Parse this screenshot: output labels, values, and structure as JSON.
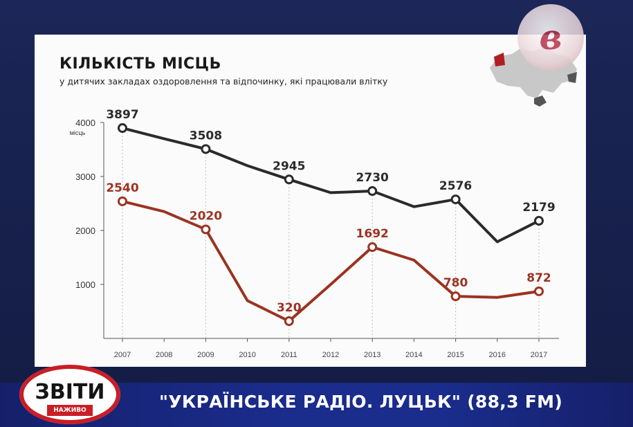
{
  "title": "КІЛЬКІСТЬ МІСЦЬ",
  "subtitle": "у дитячих закладах оздоровлення та відпочинку, які працювали влітку",
  "ticker": "\"УКРАЇНСЬКЕ РАДІО. ЛУЦЬК\" (88,3 FM)",
  "show_logo": {
    "word": "ЗВІТИ",
    "tag": "НАЖИВО"
  },
  "channel_logo": {
    "glyph": "в"
  },
  "colors": {
    "series_dark": "#2b2b2b",
    "series_red": "#9b3322",
    "card": "#fbfbfb",
    "map": "#c8c8c8",
    "map_highlight": "#b01e24"
  },
  "chart_data": {
    "type": "line",
    "title": "КІЛЬКІСТЬ МІСЦЬ",
    "subtitle": "у дитячих закладах оздоровлення та відпочинку, які працювали влітку",
    "x": [
      "2007",
      "2008",
      "2009",
      "2010",
      "2011",
      "2012",
      "2013",
      "2014",
      "2015",
      "2016",
      "2017"
    ],
    "y_ticks": [
      "1000",
      "2000",
      "3000",
      "4000"
    ],
    "y_unit": "місць",
    "ylim": [
      0,
      4000
    ],
    "grid": false,
    "series": [
      {
        "values": [
          3897,
          3700,
          3508,
          3200,
          2945,
          2700,
          2730,
          2440,
          2576,
          1790,
          2179
        ],
        "labels": [
          "3897",
          "",
          "3508",
          "",
          "2945",
          "",
          "2730",
          "",
          "2576",
          "",
          "2179"
        ],
        "color": "#2b2b2b"
      },
      {
        "values": [
          2540,
          2350,
          2020,
          700,
          320,
          1000,
          1692,
          1450,
          780,
          760,
          872
        ],
        "labels": [
          "2540",
          "",
          "2020",
          "",
          "320",
          "",
          "1692",
          "",
          "780",
          "",
          "872"
        ],
        "color": "#9b3322"
      }
    ]
  }
}
